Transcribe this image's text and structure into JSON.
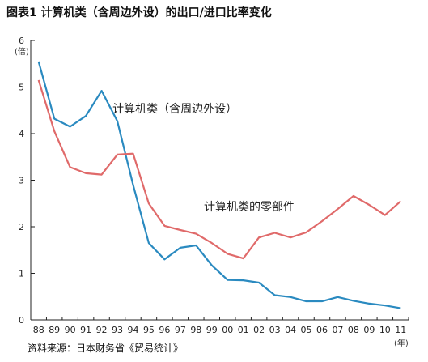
{
  "title": "图表1  计算机类（含周边外设）的出口/进口比率变化",
  "source": "资料来源：日本财务省《贸易统计》",
  "chart_data": {
    "type": "line",
    "title": "图表1  计算机类（含周边外设）的出口/进口比率变化",
    "y_unit": "(倍)",
    "x_unit": "(年)",
    "xlabel": "",
    "ylabel": "",
    "ylim": [
      0,
      6
    ],
    "yticks": [
      "0",
      "1",
      "2",
      "3",
      "4",
      "5",
      "6"
    ],
    "grid": false,
    "x": [
      "88",
      "89",
      "90",
      "91",
      "92",
      "93",
      "94",
      "95",
      "96",
      "97",
      "98",
      "99",
      "00",
      "01",
      "02",
      "03",
      "04",
      "05",
      "06",
      "07",
      "08",
      "09",
      "10",
      "11"
    ],
    "series": [
      {
        "name": "计算机类（含周边外设）",
        "color": "#2a8ac0",
        "values": [
          5.55,
          4.32,
          4.15,
          4.38,
          4.92,
          4.27,
          2.9,
          1.65,
          1.3,
          1.55,
          1.6,
          1.17,
          0.86,
          0.85,
          0.8,
          0.53,
          0.49,
          0.4,
          0.4,
          0.49,
          0.41,
          0.35,
          0.31,
          0.25
        ]
      },
      {
        "name": "计算机类的零部件",
        "color": "#e06a6a",
        "values": [
          5.15,
          4.05,
          3.28,
          3.15,
          3.12,
          3.55,
          3.57,
          2.5,
          2.02,
          1.93,
          1.85,
          1.65,
          1.42,
          1.32,
          1.77,
          1.87,
          1.77,
          1.88,
          2.12,
          2.38,
          2.66,
          2.47,
          2.25,
          2.55
        ]
      }
    ]
  }
}
